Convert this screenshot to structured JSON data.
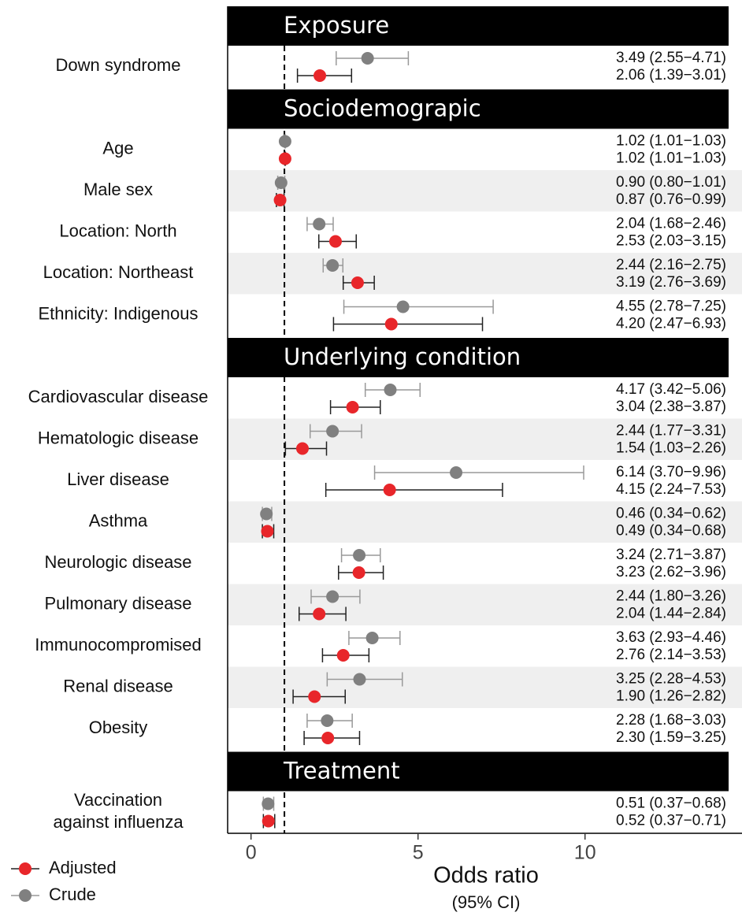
{
  "chart_data": {
    "type": "forest",
    "x_label": "Odds ratio",
    "x_label_note": "(95% CI)",
    "xlim": [
      -0.7,
      14.7
    ],
    "xticks": [
      0,
      5,
      10
    ],
    "reference_line": 1,
    "sections": [
      {
        "title": "Exposure",
        "categories": [
          "Down syndrome"
        ]
      },
      {
        "title": "Sociodemograpic",
        "categories": [
          "Age",
          "Male sex",
          "Location: North",
          "Location: Northeast",
          "Ethnicity: Indigenous"
        ]
      },
      {
        "title": "Underlying condition",
        "categories": [
          "Cardiovascular disease",
          "Hematologic disease",
          "Liver disease",
          "Asthma",
          "Neurologic disease",
          "Pulmonary disease",
          "Immunocompromised",
          "Renal disease",
          "Obesity"
        ]
      },
      {
        "title": "Treatment",
        "categories": [
          "Vaccination\nagainst influenza"
        ]
      }
    ],
    "series": [
      {
        "name": "Adjusted",
        "color": "#e8262a",
        "ci_color": "#222222",
        "values": [
          2.06,
          1.02,
          0.87,
          2.53,
          3.19,
          4.2,
          3.04,
          1.54,
          4.15,
          0.49,
          3.23,
          2.04,
          2.76,
          1.9,
          2.3,
          0.52
        ],
        "lower": [
          1.39,
          1.01,
          0.76,
          2.03,
          2.76,
          2.47,
          2.38,
          1.03,
          2.24,
          0.34,
          2.62,
          1.44,
          2.14,
          1.26,
          1.59,
          0.37
        ],
        "upper": [
          3.01,
          1.03,
          0.99,
          3.15,
          3.69,
          6.93,
          3.87,
          2.26,
          7.53,
          0.68,
          3.96,
          2.84,
          3.53,
          2.82,
          3.25,
          0.71
        ],
        "value_labels": [
          "2.06 (1.39−3.01)",
          "1.02 (1.01−1.03)",
          "0.87 (0.76−0.99)",
          "2.53 (2.03−3.15)",
          "3.19 (2.76−3.69)",
          "4.20 (2.47−6.93)",
          "3.04 (2.38−3.87)",
          "1.54 (1.03−2.26)",
          "4.15 (2.24−7.53)",
          "0.49 (0.34−0.68)",
          "3.23 (2.62−3.96)",
          "2.04 (1.44−2.84)",
          "2.76 (2.14−3.53)",
          "1.90 (1.26−2.82)",
          "2.30 (1.59−3.25)",
          "0.52 (0.37−0.71)"
        ]
      },
      {
        "name": "Crude",
        "color": "#808080",
        "ci_color": "#999999",
        "values": [
          3.49,
          1.02,
          0.9,
          2.04,
          2.44,
          4.55,
          4.17,
          2.44,
          6.14,
          0.46,
          3.24,
          2.44,
          3.63,
          3.25,
          2.28,
          0.51
        ],
        "lower": [
          2.55,
          1.01,
          0.8,
          1.68,
          2.16,
          2.78,
          3.42,
          1.77,
          3.7,
          0.34,
          2.71,
          1.8,
          2.93,
          2.28,
          1.68,
          0.37
        ],
        "upper": [
          4.71,
          1.03,
          1.01,
          2.46,
          2.75,
          7.25,
          5.06,
          3.31,
          9.96,
          0.62,
          3.87,
          3.26,
          4.46,
          4.53,
          3.03,
          0.68
        ],
        "value_labels": [
          "3.49 (2.55−4.71)",
          "1.02 (1.01−1.03)",
          "0.90 (0.80−1.01)",
          "2.04 (1.68−2.46)",
          "2.44 (2.16−2.75)",
          "4.55 (2.78−7.25)",
          "4.17 (3.42−5.06)",
          "2.44 (1.77−3.31)",
          "6.14 (3.70−9.96)",
          "0.46 (0.34−0.62)",
          "3.24 (2.71−3.87)",
          "2.44 (1.80−3.26)",
          "3.63 (2.93−4.46)",
          "3.25 (2.28−4.53)",
          "2.28 (1.68−3.03)",
          "0.51 (0.37−0.68)"
        ]
      }
    ]
  }
}
